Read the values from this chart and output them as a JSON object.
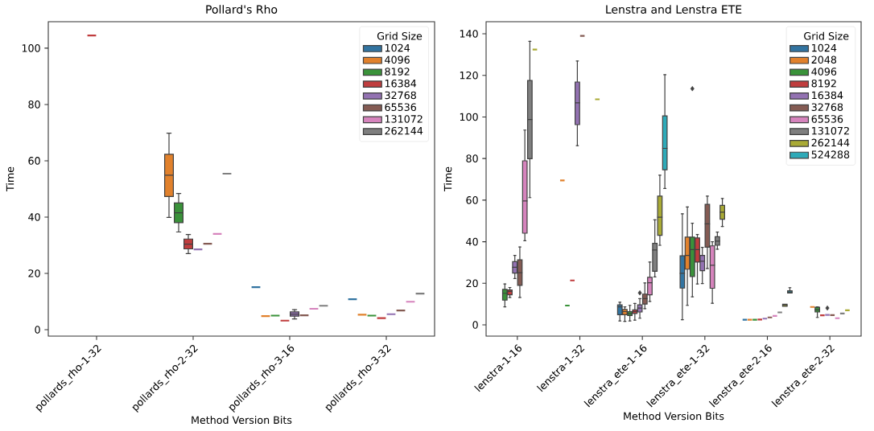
{
  "chart_data": [
    {
      "type": "box",
      "title": "Pollard's Rho",
      "xlabel": "Method Version Bits",
      "ylabel": "Time",
      "legend_title": "Grid Size",
      "legend": "top right",
      "categories": [
        "pollards_rho-1-32",
        "pollards_rho-2-32",
        "pollards_rho-3-16",
        "pollards_rho-3-32"
      ],
      "ylim": [
        -2.3,
        109.4
      ],
      "yticks": [
        0,
        20,
        40,
        60,
        80,
        100
      ],
      "series": [
        {
          "name": "1024",
          "color": "#3274a1",
          "boxes": [
            null,
            null,
            {
              "low": 15.1,
              "q1": 15.1,
              "median": 15.1,
              "q3": 15.1,
              "high": 15.1
            },
            {
              "low": 10.8,
              "q1": 10.8,
              "median": 10.8,
              "q3": 10.8,
              "high": 10.8
            }
          ]
        },
        {
          "name": "4096",
          "color": "#e1812c",
          "boxes": [
            null,
            {
              "low": 39.9,
              "q1": 47.3,
              "median": 54.9,
              "q3": 62.3,
              "high": 69.8
            },
            {
              "low": 4.8,
              "q1": 4.8,
              "median": 4.8,
              "q3": 4.8,
              "high": 4.8
            },
            {
              "low": 5.3,
              "q1": 5.3,
              "median": 5.3,
              "q3": 5.3,
              "high": 5.3
            }
          ]
        },
        {
          "name": "8192",
          "color": "#3a923a",
          "boxes": [
            null,
            {
              "low": 34.7,
              "q1": 38.0,
              "median": 41.5,
              "q3": 45.0,
              "high": 48.4
            },
            {
              "low": 5.0,
              "q1": 5.0,
              "median": 5.0,
              "q3": 5.0,
              "high": 5.0
            },
            {
              "low": 5.0,
              "q1": 5.0,
              "median": 5.0,
              "q3": 5.0,
              "high": 5.0
            }
          ]
        },
        {
          "name": "16384",
          "color": "#c03d3e",
          "boxes": [
            {
              "low": 104.5,
              "q1": 104.5,
              "median": 104.5,
              "q3": 104.5,
              "high": 104.5
            },
            {
              "low": 27.0,
              "q1": 28.7,
              "median": 30.4,
              "q3": 32.2,
              "high": 33.8
            },
            {
              "low": 3.2,
              "q1": 3.2,
              "median": 3.2,
              "q3": 3.2,
              "high": 3.2
            },
            {
              "low": 4.1,
              "q1": 4.1,
              "median": 4.1,
              "q3": 4.1,
              "high": 4.1
            }
          ]
        },
        {
          "name": "32768",
          "color": "#9372b2",
          "boxes": [
            null,
            {
              "low": 28.5,
              "q1": 28.5,
              "median": 28.5,
              "q3": 28.5,
              "high": 28.5
            },
            {
              "low": 3.8,
              "q1": 4.8,
              "median": 5.5,
              "q3": 6.3,
              "high": 7.1
            },
            {
              "low": 5.5,
              "q1": 5.5,
              "median": 5.5,
              "q3": 5.5,
              "high": 5.5
            }
          ]
        },
        {
          "name": "65536",
          "color": "#845b53",
          "boxes": [
            null,
            {
              "low": 30.5,
              "q1": 30.5,
              "median": 30.5,
              "q3": 30.5,
              "high": 30.5
            },
            {
              "low": 5.1,
              "q1": 5.1,
              "median": 5.1,
              "q3": 5.1,
              "high": 5.1
            },
            {
              "low": 6.8,
              "q1": 6.8,
              "median": 6.8,
              "q3": 6.8,
              "high": 6.8
            }
          ]
        },
        {
          "name": "131072",
          "color": "#d684bd",
          "boxes": [
            null,
            {
              "low": 34.0,
              "q1": 34.0,
              "median": 34.0,
              "q3": 34.0,
              "high": 34.0
            },
            {
              "low": 7.4,
              "q1": 7.4,
              "median": 7.4,
              "q3": 7.4,
              "high": 7.4
            },
            {
              "low": 9.9,
              "q1": 9.9,
              "median": 9.9,
              "q3": 9.9,
              "high": 9.9
            }
          ]
        },
        {
          "name": "262144",
          "color": "#7f7f7f",
          "boxes": [
            null,
            {
              "low": 55.4,
              "q1": 55.4,
              "median": 55.4,
              "q3": 55.4,
              "high": 55.4
            },
            {
              "low": 8.5,
              "q1": 8.5,
              "median": 8.5,
              "q3": 8.5,
              "high": 8.5
            },
            {
              "low": 12.8,
              "q1": 12.8,
              "median": 12.8,
              "q3": 12.8,
              "high": 12.8
            }
          ]
        }
      ]
    },
    {
      "type": "box",
      "title": "Lenstra and Lenstra ETE",
      "xlabel": "Method Version Bits",
      "ylabel": "Time",
      "legend_title": "Grid Size",
      "legend": "top right",
      "categories": [
        "lenstra-1-16",
        "lenstra-1-32",
        "lenstra_ete-1-16",
        "lenstra_ete-1-32",
        "lenstra_ete-2-16",
        "lenstra_ete-2-32"
      ],
      "ylim": [
        -5.4,
        145.8
      ],
      "yticks": [
        0,
        20,
        40,
        60,
        80,
        100,
        120,
        140
      ],
      "series": [
        {
          "name": "1024",
          "color": "#3274a1",
          "boxes": [
            null,
            null,
            {
              "low": 1.9,
              "q1": 4.9,
              "median": 8.7,
              "q3": 9.6,
              "high": 10.9
            },
            {
              "low": 2.5,
              "q1": 17.7,
              "median": 24.8,
              "q3": 33.2,
              "high": 53.4
            },
            {
              "low": 2.5,
              "q1": 2.5,
              "median": 2.5,
              "q3": 2.5,
              "high": 2.5
            },
            null
          ]
        },
        {
          "name": "2048",
          "color": "#e1812c",
          "boxes": [
            null,
            {
              "low": 69.5,
              "q1": 69.5,
              "median": 69.5,
              "q3": 69.5,
              "high": 69.5
            },
            {
              "low": 1.7,
              "q1": 4.9,
              "median": 6.4,
              "q3": 7.4,
              "high": 8.7
            },
            {
              "low": 9.4,
              "q1": 26.8,
              "median": 33.4,
              "q3": 42.2,
              "high": 56.7
            },
            {
              "low": 2.5,
              "q1": 2.5,
              "median": 2.5,
              "q3": 2.5,
              "high": 2.5
            },
            {
              "low": 8.6,
              "q1": 8.6,
              "median": 8.6,
              "q3": 8.6,
              "high": 8.6
            }
          ]
        },
        {
          "name": "4096",
          "color": "#3a923a",
          "boxes": [
            {
              "low": 8.7,
              "q1": 11.9,
              "median": 15.2,
              "q3": 17.1,
              "high": 19.7
            },
            {
              "low": 9.3,
              "q1": 9.3,
              "median": 9.3,
              "q3": 9.3,
              "high": 9.3
            },
            {
              "low": 1.9,
              "q1": 4.5,
              "median": 5.5,
              "q3": 6.4,
              "high": 9.4
            },
            {
              "low": 13.5,
              "q1": 23.3,
              "median": 36.2,
              "q3": 42.2,
              "high": 48.9,
              "outliers": [
                113.6
              ]
            },
            {
              "low": 2.5,
              "q1": 2.5,
              "median": 2.5,
              "q3": 2.5,
              "high": 2.5
            },
            {
              "low": 3.6,
              "q1": 6.2,
              "median": 7.2,
              "q3": 8.5,
              "high": 8.7
            }
          ]
        },
        {
          "name": "8192",
          "color": "#c03d3e",
          "boxes": [
            {
              "low": 13.2,
              "q1": 14.5,
              "median": 16.1,
              "q3": 16.8,
              "high": 18.0
            },
            {
              "low": 21.4,
              "q1": 21.4,
              "median": 21.4,
              "q3": 21.4,
              "high": 21.4
            },
            {
              "low": 2.3,
              "q1": 5.5,
              "median": 6.4,
              "q3": 7.2,
              "high": 10.3
            },
            {
              "low": 19.7,
              "q1": 30.2,
              "median": 36.2,
              "q3": 41.8,
              "high": 43.5
            },
            {
              "low": 2.6,
              "q1": 2.6,
              "median": 2.6,
              "q3": 2.6,
              "high": 2.6
            },
            {
              "low": 4.6,
              "q1": 4.6,
              "median": 4.6,
              "q3": 4.6,
              "high": 4.6
            }
          ]
        },
        {
          "name": "16384",
          "color": "#9372b2",
          "boxes": [
            {
              "low": 22.3,
              "q1": 24.9,
              "median": 27.7,
              "q3": 30.4,
              "high": 33.4
            },
            {
              "low": 86.2,
              "q1": 96.3,
              "median": 106.8,
              "q3": 116.8,
              "high": 126.9
            },
            {
              "low": 3.2,
              "q1": 6.2,
              "median": 8.1,
              "q3": 9.6,
              "high": 12.6,
              "outliers": [
                15.4
              ]
            },
            {
              "low": 19.9,
              "q1": 26.1,
              "median": 30.6,
              "q3": 33.4,
              "high": 37.3
            },
            {
              "low": 3.0,
              "q1": 3.0,
              "median": 3.0,
              "q3": 3.0,
              "high": 3.0
            },
            {
              "low": 4.8,
              "q1": 4.8,
              "median": 4.8,
              "q3": 4.8,
              "high": 4.8,
              "outliers": [
                8.1
              ]
            }
          ]
        },
        {
          "name": "32768",
          "color": "#845b53",
          "boxes": [
            {
              "low": 13.2,
              "q1": 19.0,
              "median": 25.1,
              "q3": 31.3,
              "high": 37.5
            },
            {
              "low": 139.0,
              "q1": 139.0,
              "median": 139.0,
              "q3": 139.0,
              "high": 139.0
            },
            {
              "low": 7.8,
              "q1": 10.0,
              "median": 12.6,
              "q3": 14.8,
              "high": 20.2
            },
            {
              "low": 27.1,
              "q1": 37.4,
              "median": 48.6,
              "q3": 58.0,
              "high": 61.9
            },
            {
              "low": 3.6,
              "q1": 3.6,
              "median": 3.6,
              "q3": 3.6,
              "high": 3.6
            },
            {
              "low": 4.7,
              "q1": 4.7,
              "median": 4.7,
              "q3": 4.7,
              "high": 4.7
            }
          ]
        },
        {
          "name": "65536",
          "color": "#d684bd",
          "boxes": [
            {
              "low": 40.5,
              "q1": 44.1,
              "median": 59.6,
              "q3": 78.9,
              "high": 93.7
            },
            null,
            {
              "low": 11.3,
              "q1": 14.5,
              "median": 20.3,
              "q3": 22.9,
              "high": 30.2
            },
            {
              "low": 10.4,
              "q1": 17.6,
              "median": 28.7,
              "q3": 38.0,
              "high": 40.0
            },
            {
              "low": 4.3,
              "q1": 4.3,
              "median": 4.3,
              "q3": 4.3,
              "high": 4.3
            },
            {
              "low": 3.2,
              "q1": 3.2,
              "median": 3.2,
              "q3": 3.2,
              "high": 3.2
            }
          ]
        },
        {
          "name": "131072",
          "color": "#7f7f7f",
          "boxes": [
            {
              "low": 61.2,
              "q1": 79.9,
              "median": 98.8,
              "q3": 117.5,
              "high": 136.4
            },
            null,
            {
              "low": 23.1,
              "q1": 25.8,
              "median": 36.0,
              "q3": 39.2,
              "high": 50.5
            },
            {
              "low": 36.4,
              "q1": 38.3,
              "median": 40.3,
              "q3": 42.4,
              "high": 44.6
            },
            {
              "low": 6.0,
              "q1": 6.0,
              "median": 6.0,
              "q3": 6.0,
              "high": 6.0
            },
            {
              "low": 5.5,
              "q1": 5.5,
              "median": 5.5,
              "q3": 5.5,
              "high": 5.5
            }
          ]
        },
        {
          "name": "262144",
          "color": "#a9aa35",
          "boxes": [
            {
              "low": 132.4,
              "q1": 132.4,
              "median": 132.4,
              "q3": 132.4,
              "high": 132.4
            },
            {
              "low": 108.5,
              "q1": 108.5,
              "median": 108.5,
              "q3": 108.5,
              "high": 108.5
            },
            {
              "low": 38.3,
              "q1": 43.1,
              "median": 51.8,
              "q3": 61.9,
              "high": 72.0
            },
            {
              "low": 47.3,
              "q1": 50.8,
              "median": 54.2,
              "q3": 57.5,
              "high": 60.8
            },
            {
              "low": 8.9,
              "q1": 8.9,
              "median": 9.4,
              "q3": 9.9,
              "high": 9.9
            },
            {
              "low": 7.0,
              "q1": 7.0,
              "median": 7.0,
              "q3": 7.0,
              "high": 7.0
            }
          ]
        },
        {
          "name": "524288",
          "color": "#2eaab8",
          "boxes": [
            null,
            null,
            {
              "low": 65.6,
              "q1": 74.6,
              "median": 84.9,
              "q3": 100.5,
              "high": 120.3
            },
            null,
            {
              "low": 15.3,
              "q1": 15.3,
              "median": 15.8,
              "q3": 16.4,
              "high": 17.9
            },
            null
          ]
        }
      ]
    }
  ]
}
